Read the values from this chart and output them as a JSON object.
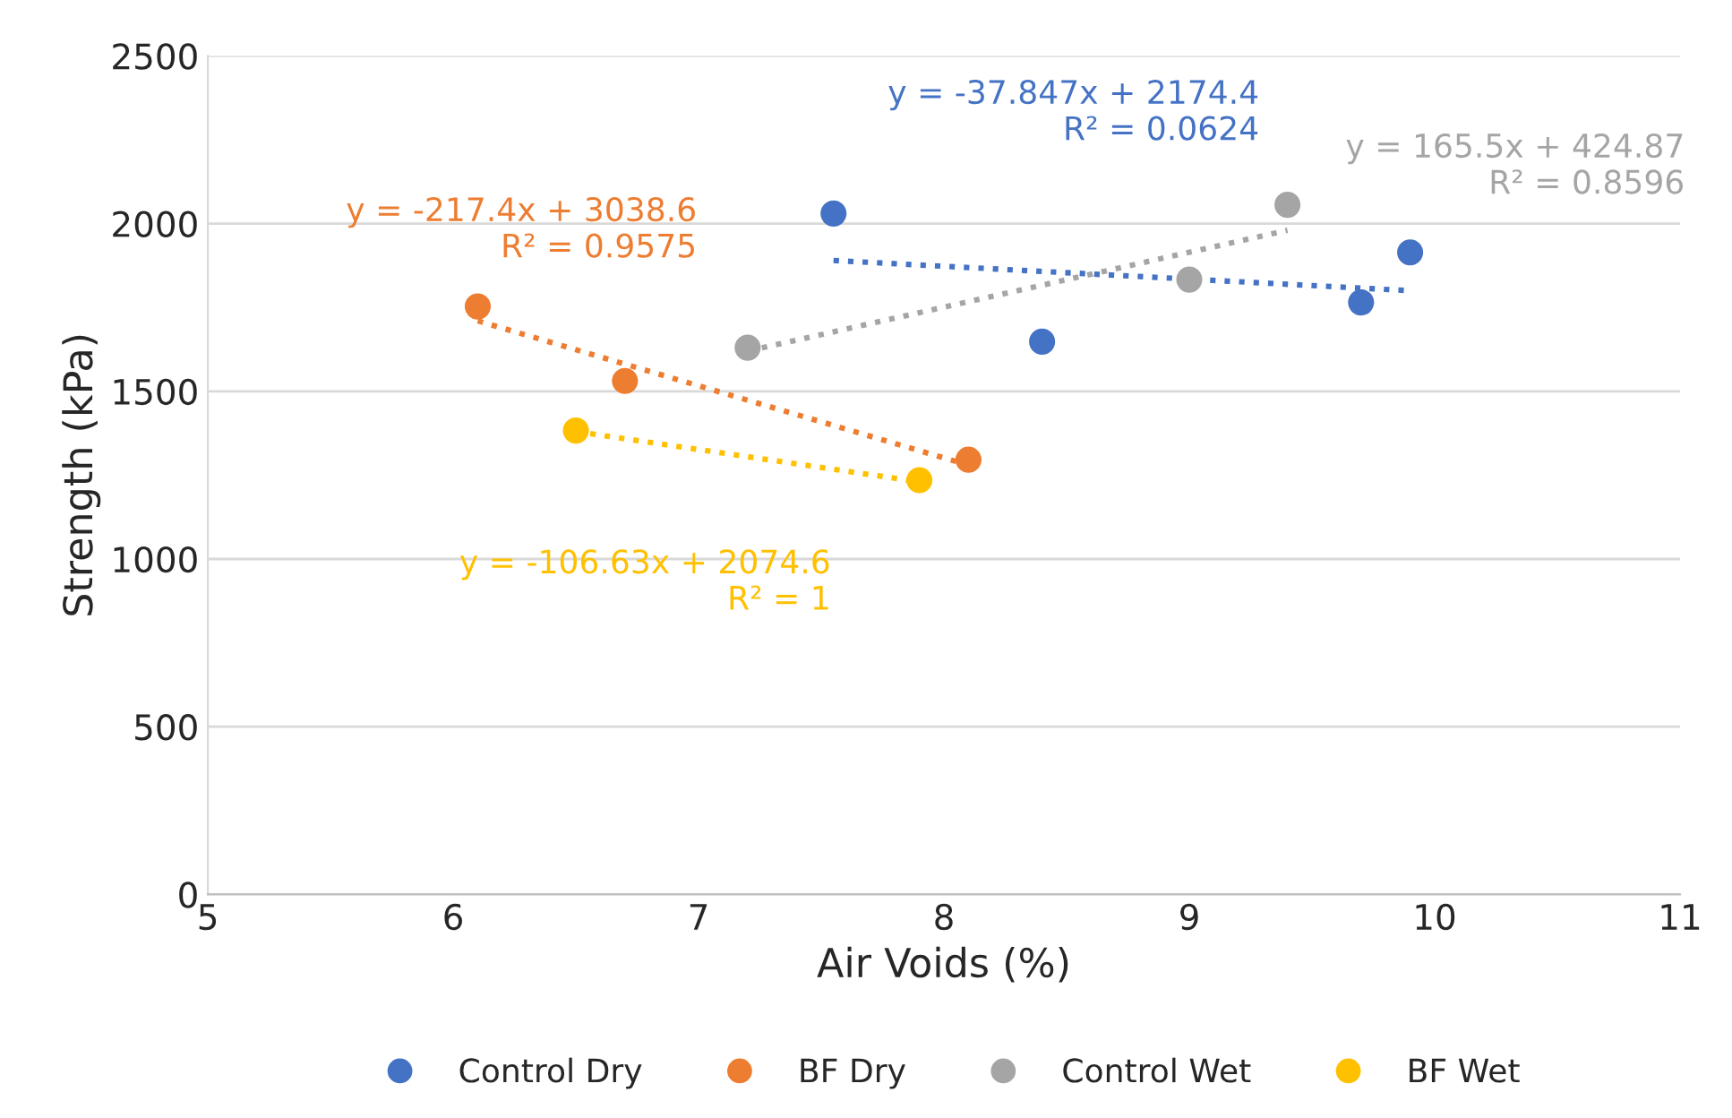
{
  "chart_data": {
    "type": "scatter",
    "xlabel": "Air Voids (%)",
    "ylabel": "Strength (kPa)",
    "xlim": [
      5,
      11
    ],
    "xticks": [
      5,
      6,
      7,
      8,
      9,
      10,
      11
    ],
    "ylim": [
      0,
      2500
    ],
    "yticks": [
      0,
      500,
      1000,
      1500,
      2000,
      2500
    ],
    "grid": "y",
    "legend": "bottom",
    "series": [
      {
        "name": "Control Dry",
        "marker": "circle",
        "color": "#4472c4",
        "x": [
          7.55,
          8.4,
          9.7,
          9.9
        ],
        "values": [
          2030,
          1648,
          1765,
          1914
        ]
      },
      {
        "name": "BF Dry",
        "marker": "circle",
        "color": "#ed7d31",
        "x": [
          6.1,
          6.7,
          8.1
        ],
        "values": [
          1753,
          1531,
          1296
        ]
      },
      {
        "name": "Control Wet",
        "marker": "circle",
        "color": "#a5a5a5",
        "x": [
          7.2,
          9.0,
          9.4
        ],
        "values": [
          1630,
          1833,
          2056
        ]
      },
      {
        "name": "BF Wet",
        "marker": "circle",
        "color": "#ffc000",
        "x": [
          6.5,
          7.9
        ],
        "values": [
          1383,
          1235
        ]
      },
      {
        "type": "line",
        "line_style": "dotted",
        "color": "#4472c4",
        "x": [
          7.55,
          9.9
        ],
        "values": [
          1890,
          1800
        ],
        "marker": "none"
      },
      {
        "type": "line",
        "line_style": "dotted",
        "color": "#ed7d31",
        "x": [
          6.1,
          8.1
        ],
        "values": [
          1710,
          1280
        ],
        "marker": "none"
      },
      {
        "type": "line",
        "line_style": "dotted",
        "color": "#a5a5a5",
        "x": [
          7.2,
          9.4
        ],
        "values": [
          1620,
          1980
        ],
        "marker": "none"
      },
      {
        "type": "line",
        "line_style": "dotted",
        "color": "#ffc000",
        "x": [
          6.5,
          7.9
        ],
        "values": [
          1380,
          1230
        ],
        "marker": "none"
      }
    ],
    "annotations": [
      "y = -37.847x + 2174.4\nR² = 0.0624",
      "y = -217.4x + 3038.6\nR² = 0.9575",
      "y = 165.5x + 424.87\nR² = 0.8596",
      "y = -106.63x + 2074.6\nR² = 1"
    ]
  }
}
